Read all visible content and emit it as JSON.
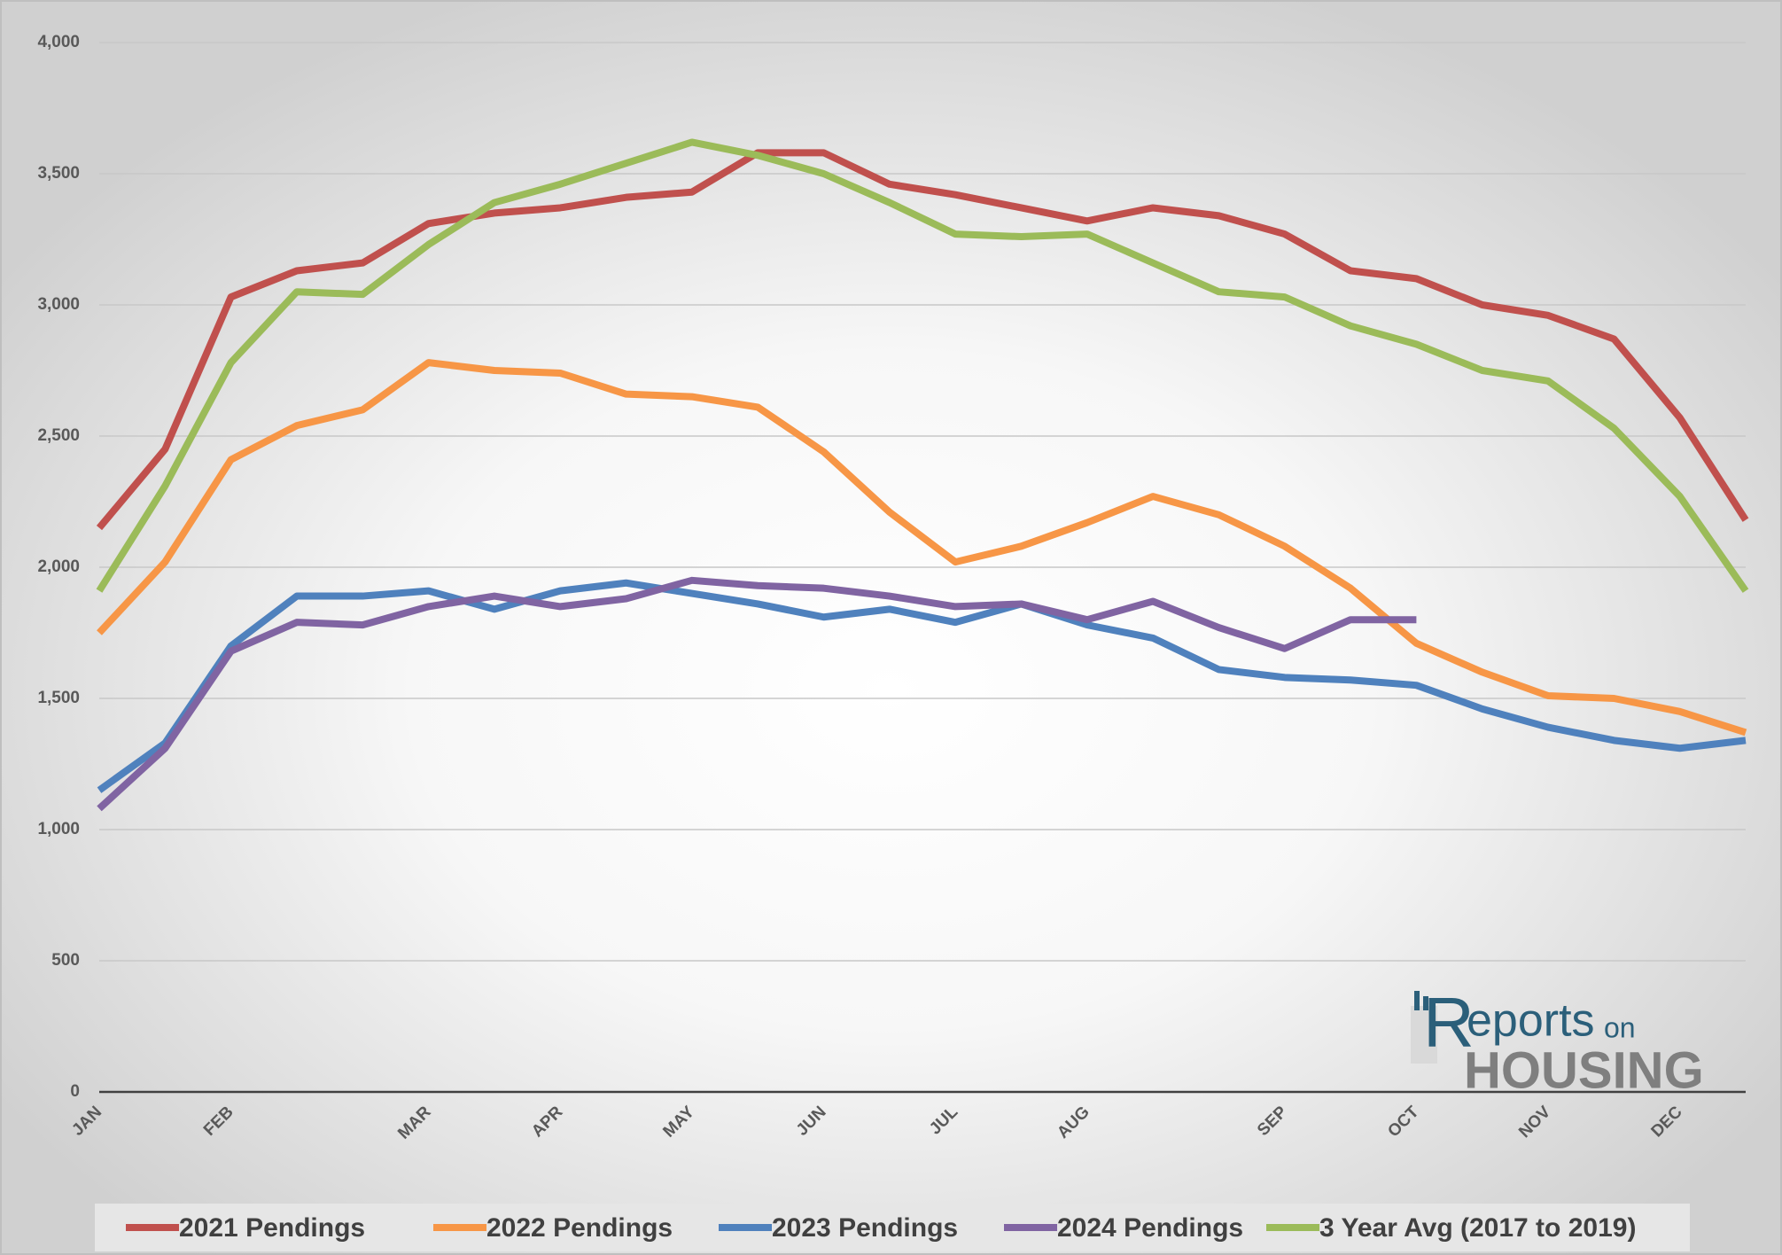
{
  "chart_data": {
    "type": "line",
    "categories": [
      "JAN",
      null,
      "FEB",
      null,
      null,
      "MAR",
      null,
      "APR",
      null,
      "MAY",
      null,
      "JUN",
      null,
      "JUL",
      null,
      "AUG",
      null,
      null,
      "SEP",
      null,
      "OCT",
      null,
      "NOV",
      null,
      "DEC",
      null
    ],
    "series": [
      {
        "name": "2021 Pendings",
        "color": "#c0504d",
        "values": [
          2150,
          2450,
          3030,
          3130,
          3160,
          3310,
          3350,
          3370,
          3410,
          3430,
          3580,
          3580,
          3460,
          3420,
          3370,
          3320,
          3370,
          3340,
          3270,
          3130,
          3100,
          3000,
          2960,
          2870,
          2570,
          2180
        ]
      },
      {
        "name": "2022 Pendings",
        "color": "#f79646",
        "values": [
          1750,
          2020,
          2410,
          2540,
          2600,
          2780,
          2750,
          2740,
          2660,
          2650,
          2610,
          2440,
          2210,
          2020,
          2080,
          2170,
          2270,
          2200,
          2080,
          1920,
          1710,
          1600,
          1510,
          1500,
          1450,
          1370
        ]
      },
      {
        "name": "2023 Pendings",
        "color": "#4f81bd",
        "values": [
          1150,
          1330,
          1700,
          1890,
          1890,
          1910,
          1840,
          1910,
          1940,
          1900,
          1860,
          1810,
          1840,
          1790,
          1860,
          1780,
          1730,
          1610,
          1580,
          1570,
          1550,
          1460,
          1390,
          1340,
          1310,
          1340
        ]
      },
      {
        "name": "2024 Pendings",
        "color": "#8064a2",
        "values": [
          1080,
          1310,
          1680,
          1790,
          1780,
          1850,
          1890,
          1850,
          1880,
          1950,
          1930,
          1920,
          1890,
          1850,
          1860,
          1800,
          1870,
          1770,
          1690,
          1800,
          1800,
          null,
          null,
          null,
          null,
          null
        ]
      },
      {
        "name": "3 Year Avg (2017 to 2019)",
        "color": "#9bbb59",
        "values": [
          1910,
          2310,
          2780,
          3050,
          3040,
          3230,
          3390,
          3460,
          3540,
          3620,
          3570,
          3500,
          3390,
          3270,
          3260,
          3270,
          3160,
          3050,
          3030,
          2920,
          2850,
          2750,
          2710,
          2530,
          2270,
          1910
        ]
      }
    ],
    "ylim": [
      0,
      4000
    ],
    "yticks": [
      0,
      500,
      {
        "value": 1000,
        "label": "1,000"
      },
      {
        "value": 1500,
        "label": "1,500"
      },
      {
        "value": 2000,
        "label": "2,000"
      },
      {
        "value": 2500,
        "label": "2,500"
      },
      {
        "value": 3000,
        "label": "3,000"
      },
      {
        "value": 3500,
        "label": "3,500"
      },
      {
        "value": 4000,
        "label": "4,000"
      }
    ],
    "grid": true,
    "legend": "bottom",
    "logo": [
      "R",
      "eports",
      "on",
      "HOUSING"
    ]
  }
}
